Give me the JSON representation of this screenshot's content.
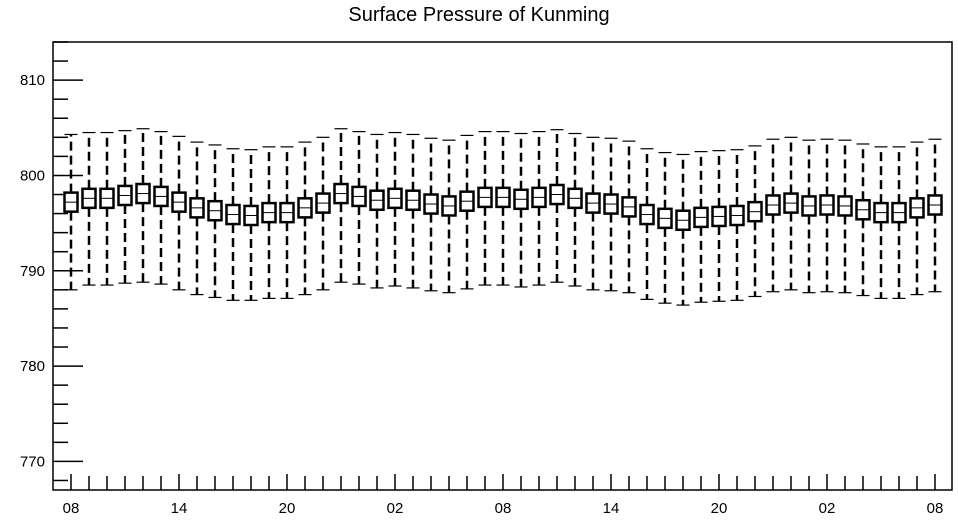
{
  "chart_data": {
    "type": "boxplot",
    "title": "Surface Pressure of Kunming",
    "xlabel": "",
    "ylabel": "",
    "ylim": [
      767,
      814
    ],
    "yticks": [
      770,
      780,
      790,
      800,
      810
    ],
    "xtick_labels": [
      "08",
      "14",
      "20",
      "02",
      "08",
      "14",
      "20",
      "02",
      "08"
    ],
    "grid": false,
    "series": [
      {
        "categories": [
          0,
          1,
          2,
          3,
          4,
          5,
          6,
          7,
          8,
          9,
          10,
          11,
          12,
          13,
          14,
          15,
          16,
          17,
          18,
          19,
          20,
          21,
          22,
          23,
          24,
          25,
          26,
          27,
          28,
          29,
          30,
          31,
          32,
          33,
          34,
          35,
          36,
          37,
          38,
          39,
          40,
          41,
          42,
          43,
          44,
          45,
          46,
          47,
          48
        ],
        "median": [
          797.2,
          797.6,
          797.6,
          797.9,
          798.1,
          797.8,
          797.2,
          796.6,
          796.3,
          795.9,
          795.8,
          796.1,
          796.1,
          796.6,
          797.1,
          798.1,
          797.8,
          797.4,
          797.6,
          797.4,
          797.0,
          796.8,
          797.3,
          797.7,
          797.7,
          797.5,
          797.7,
          798.0,
          797.6,
          797.1,
          797.0,
          796.7,
          795.9,
          795.5,
          795.3,
          795.6,
          795.7,
          795.8,
          796.2,
          796.9,
          797.1,
          796.8,
          796.9,
          796.8,
          796.4,
          796.1,
          796.1,
          796.6,
          796.9
        ],
        "q1": [
          796.2,
          796.6,
          796.6,
          796.9,
          797.1,
          796.8,
          796.2,
          795.6,
          795.3,
          794.9,
          794.8,
          795.1,
          795.1,
          795.6,
          796.1,
          797.1,
          796.8,
          796.4,
          796.6,
          796.4,
          796.0,
          795.8,
          796.3,
          796.7,
          796.7,
          796.5,
          796.7,
          797.0,
          796.6,
          796.1,
          796.0,
          795.7,
          794.9,
          794.5,
          794.3,
          794.6,
          794.7,
          794.8,
          795.2,
          795.9,
          796.1,
          795.8,
          795.9,
          795.8,
          795.4,
          795.1,
          795.1,
          795.6,
          795.9
        ],
        "q3": [
          798.2,
          798.6,
          798.6,
          798.9,
          799.1,
          798.8,
          798.2,
          797.6,
          797.3,
          796.9,
          796.8,
          797.1,
          797.1,
          797.6,
          798.1,
          799.1,
          798.8,
          798.4,
          798.6,
          798.4,
          798.0,
          797.8,
          798.3,
          798.7,
          798.7,
          798.5,
          798.7,
          799.0,
          798.6,
          798.1,
          798.0,
          797.7,
          796.9,
          796.5,
          796.3,
          796.6,
          796.7,
          796.8,
          797.2,
          797.9,
          798.1,
          797.8,
          797.9,
          797.8,
          797.4,
          797.1,
          797.1,
          797.6,
          797.9
        ],
        "whisker_low": [
          788.0,
          788.5,
          788.5,
          788.7,
          788.8,
          788.6,
          788.0,
          787.5,
          787.2,
          786.9,
          786.9,
          787.1,
          787.1,
          787.5,
          788.0,
          788.8,
          788.6,
          788.2,
          788.4,
          788.2,
          787.9,
          787.7,
          788.1,
          788.5,
          788.5,
          788.3,
          788.5,
          788.8,
          788.4,
          788.0,
          787.9,
          787.7,
          787.0,
          786.6,
          786.4,
          786.7,
          786.8,
          786.9,
          787.3,
          787.8,
          788.0,
          787.7,
          787.8,
          787.7,
          787.4,
          787.1,
          787.1,
          787.5,
          787.8
        ],
        "whisker_high": [
          804.3,
          804.5,
          804.5,
          804.7,
          804.9,
          804.6,
          804.1,
          803.5,
          803.2,
          802.8,
          802.7,
          803.0,
          803.0,
          803.5,
          804.0,
          804.9,
          804.6,
          804.3,
          804.5,
          804.3,
          803.9,
          803.7,
          804.2,
          804.6,
          804.6,
          804.4,
          804.6,
          804.8,
          804.4,
          804.0,
          803.9,
          803.6,
          802.8,
          802.4,
          802.2,
          802.5,
          802.6,
          802.7,
          803.1,
          803.8,
          804.0,
          803.7,
          803.8,
          803.7,
          803.3,
          803.0,
          803.0,
          803.5,
          803.8
        ]
      }
    ]
  },
  "colors": {
    "box_fill": "#ffffff",
    "box_stroke": "#000000",
    "whisker": "#000000"
  }
}
